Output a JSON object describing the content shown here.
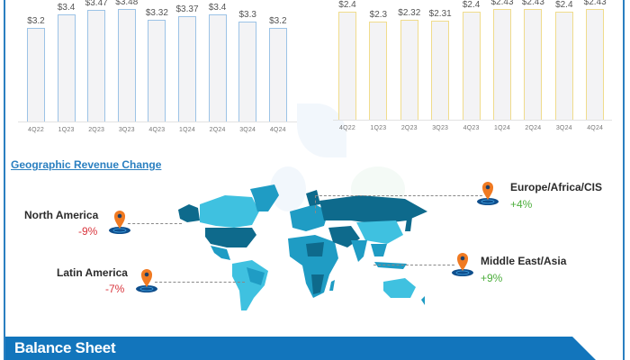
{
  "chart_data": [
    {
      "type": "bar",
      "title": "",
      "categories": [
        "4Q22",
        "1Q23",
        "2Q23",
        "3Q23",
        "4Q23",
        "1Q24",
        "2Q24",
        "3Q24",
        "4Q24"
      ],
      "values": [
        3.2,
        3.4,
        3.47,
        3.48,
        3.32,
        3.37,
        3.4,
        3.3,
        3.2
      ],
      "value_labels": [
        "$3.2",
        "$3.4",
        "$3.47",
        "$3.48",
        "$3.32",
        "$3.37",
        "$3.4",
        "$3.3",
        "$3.2"
      ],
      "xlabel": "",
      "ylabel": "",
      "bar_border_color": "#9cc3e6",
      "bar_fill_color": "#f3f3f5",
      "grid": false
    },
    {
      "type": "bar",
      "title": "",
      "categories": [
        "4Q22",
        "1Q23",
        "2Q23",
        "3Q23",
        "4Q23",
        "1Q24",
        "2Q24",
        "3Q24",
        "4Q24"
      ],
      "values": [
        2.4,
        2.3,
        2.32,
        2.31,
        2.4,
        2.43,
        2.43,
        2.4,
        2.43
      ],
      "value_labels": [
        "$2.4",
        "$2.3",
        "$2.32",
        "$2.31",
        "$2.4",
        "$2.43",
        "$2.43",
        "$2.4",
        "$2.43"
      ],
      "xlabel": "",
      "ylabel": "",
      "bar_border_color": "#f0dc8c",
      "bar_fill_color": "#f3f3f5",
      "grid": false
    }
  ],
  "geo": {
    "title": "Geographic Revenue Change",
    "regions": [
      {
        "name": "North America",
        "change": "-9%",
        "direction": "negative"
      },
      {
        "name": "Latin America",
        "change": "-7%",
        "direction": "negative"
      },
      {
        "name": "Europe/Africa/CIS",
        "change": "+4%",
        "direction": "positive"
      },
      {
        "name": "Middle East/Asia",
        "change": "+9%",
        "direction": "positive"
      }
    ],
    "colors": {
      "negative": "#d9363e",
      "positive": "#4cae3c",
      "pin": "#f07a22",
      "map_dark": "#0e6a8c",
      "map_mid": "#1f9cc4",
      "map_light": "#3fc1e0"
    }
  },
  "balance_sheet": {
    "title": "Balance Sheet",
    "color": "#1275bc"
  }
}
